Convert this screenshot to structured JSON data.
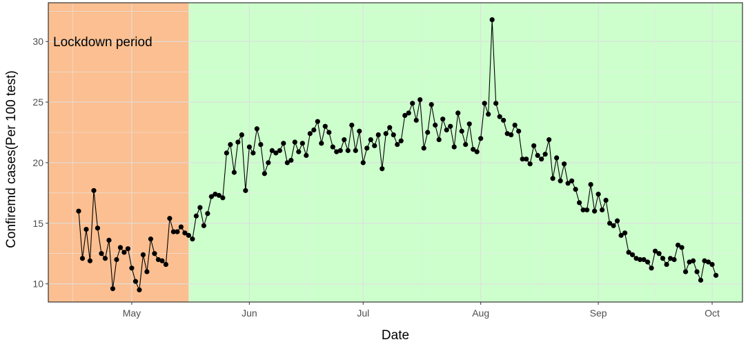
{
  "chart_data": {
    "type": "line",
    "title": "",
    "xlabel": "Date",
    "ylabel": "Confiremd cases(Per 100 test)",
    "x_ticks": [
      {
        "label": "May",
        "date": "2020-05-01"
      },
      {
        "label": "Jun",
        "date": "2020-06-01"
      },
      {
        "label": "Jul",
        "date": "2020-07-01"
      },
      {
        "label": "Aug",
        "date": "2020-08-01"
      },
      {
        "label": "Sep",
        "date": "2020-09-01"
      },
      {
        "label": "Oct",
        "date": "2020-10-01"
      }
    ],
    "xlim": [
      "2020-04-09",
      "2020-10-09"
    ],
    "y_ticks": [
      10,
      15,
      20,
      25,
      30
    ],
    "ylim": [
      8.5,
      33.2
    ],
    "grid": true,
    "annotations": [
      {
        "text": "Lockdown period"
      }
    ],
    "regions": [
      {
        "name": "lockdown",
        "start": "2020-04-09",
        "end": "2020-05-16",
        "color": "#fbbf91"
      },
      {
        "name": "post-lockdown",
        "start": "2020-05-16",
        "end": "2020-10-09",
        "color": "#ccffcc"
      }
    ],
    "series": [
      {
        "color": "#000000",
        "points": [
          [
            "2020-04-17",
            16.0
          ],
          [
            "2020-04-18",
            12.1
          ],
          [
            "2020-04-19",
            14.5
          ],
          [
            "2020-04-20",
            11.9
          ],
          [
            "2020-04-21",
            17.7
          ],
          [
            "2020-04-22",
            14.6
          ],
          [
            "2020-04-23",
            12.5
          ],
          [
            "2020-04-24",
            12.1
          ],
          [
            "2020-04-25",
            13.6
          ],
          [
            "2020-04-26",
            9.6
          ],
          [
            "2020-04-27",
            12.0
          ],
          [
            "2020-04-28",
            13.0
          ],
          [
            "2020-04-29",
            12.6
          ],
          [
            "2020-04-30",
            12.9
          ],
          [
            "2020-05-01",
            11.3
          ],
          [
            "2020-05-02",
            10.2
          ],
          [
            "2020-05-03",
            9.5
          ],
          [
            "2020-05-04",
            12.4
          ],
          [
            "2020-05-05",
            11.0
          ],
          [
            "2020-05-06",
            13.7
          ],
          [
            "2020-05-07",
            12.5
          ],
          [
            "2020-05-08",
            12.0
          ],
          [
            "2020-05-09",
            11.9
          ],
          [
            "2020-05-10",
            11.6
          ],
          [
            "2020-05-11",
            15.4
          ],
          [
            "2020-05-12",
            14.3
          ],
          [
            "2020-05-13",
            14.3
          ],
          [
            "2020-05-14",
            14.7
          ],
          [
            "2020-05-15",
            14.2
          ],
          [
            "2020-05-16",
            14.0
          ],
          [
            "2020-05-17",
            13.7
          ],
          [
            "2020-05-18",
            15.6
          ],
          [
            "2020-05-19",
            16.3
          ],
          [
            "2020-05-20",
            14.8
          ],
          [
            "2020-05-21",
            15.8
          ],
          [
            "2020-05-22",
            17.2
          ],
          [
            "2020-05-23",
            17.4
          ],
          [
            "2020-05-24",
            17.3
          ],
          [
            "2020-05-25",
            17.1
          ],
          [
            "2020-05-26",
            20.8
          ],
          [
            "2020-05-27",
            21.5
          ],
          [
            "2020-05-28",
            19.2
          ],
          [
            "2020-05-29",
            21.7
          ],
          [
            "2020-05-30",
            22.3
          ],
          [
            "2020-05-31",
            17.7
          ],
          [
            "2020-06-01",
            21.3
          ],
          [
            "2020-06-02",
            20.8
          ],
          [
            "2020-06-03",
            22.8
          ],
          [
            "2020-06-04",
            21.5
          ],
          [
            "2020-06-05",
            19.1
          ],
          [
            "2020-06-06",
            20.0
          ],
          [
            "2020-06-07",
            21.0
          ],
          [
            "2020-06-08",
            20.8
          ],
          [
            "2020-06-09",
            21.0
          ],
          [
            "2020-06-10",
            21.6
          ],
          [
            "2020-06-11",
            20.0
          ],
          [
            "2020-06-12",
            20.2
          ],
          [
            "2020-06-13",
            21.7
          ],
          [
            "2020-06-14",
            20.9
          ],
          [
            "2020-06-15",
            21.6
          ],
          [
            "2020-06-16",
            20.6
          ],
          [
            "2020-06-17",
            22.4
          ],
          [
            "2020-06-18",
            22.7
          ],
          [
            "2020-06-19",
            23.4
          ],
          [
            "2020-06-20",
            21.6
          ],
          [
            "2020-06-21",
            23.0
          ],
          [
            "2020-06-22",
            22.5
          ],
          [
            "2020-06-23",
            21.3
          ],
          [
            "2020-06-24",
            20.9
          ],
          [
            "2020-06-25",
            21.0
          ],
          [
            "2020-06-26",
            21.9
          ],
          [
            "2020-06-27",
            21.0
          ],
          [
            "2020-06-28",
            23.1
          ],
          [
            "2020-06-29",
            21.0
          ],
          [
            "2020-06-30",
            22.6
          ],
          [
            "2020-07-01",
            20.0
          ],
          [
            "2020-07-02",
            21.2
          ],
          [
            "2020-07-03",
            21.9
          ],
          [
            "2020-07-04",
            21.4
          ],
          [
            "2020-07-05",
            22.3
          ],
          [
            "2020-07-06",
            19.5
          ],
          [
            "2020-07-07",
            22.4
          ],
          [
            "2020-07-08",
            22.9
          ],
          [
            "2020-07-09",
            22.3
          ],
          [
            "2020-07-10",
            21.5
          ],
          [
            "2020-07-11",
            21.8
          ],
          [
            "2020-07-12",
            23.9
          ],
          [
            "2020-07-13",
            24.1
          ],
          [
            "2020-07-14",
            24.9
          ],
          [
            "2020-07-15",
            23.5
          ],
          [
            "2020-07-16",
            25.2
          ],
          [
            "2020-07-17",
            21.2
          ],
          [
            "2020-07-18",
            22.5
          ],
          [
            "2020-07-19",
            24.8
          ],
          [
            "2020-07-20",
            23.1
          ],
          [
            "2020-07-21",
            21.9
          ],
          [
            "2020-07-22",
            23.6
          ],
          [
            "2020-07-23",
            22.7
          ],
          [
            "2020-07-24",
            23.0
          ],
          [
            "2020-07-25",
            21.3
          ],
          [
            "2020-07-26",
            24.1
          ],
          [
            "2020-07-27",
            22.6
          ],
          [
            "2020-07-28",
            21.5
          ],
          [
            "2020-07-29",
            23.2
          ],
          [
            "2020-07-30",
            21.1
          ],
          [
            "2020-07-31",
            20.9
          ],
          [
            "2020-08-01",
            22.0
          ],
          [
            "2020-08-02",
            24.9
          ],
          [
            "2020-08-03",
            24.0
          ],
          [
            "2020-08-04",
            31.8
          ],
          [
            "2020-08-05",
            24.9
          ],
          [
            "2020-08-06",
            23.8
          ],
          [
            "2020-08-07",
            23.5
          ],
          [
            "2020-08-08",
            22.4
          ],
          [
            "2020-08-09",
            22.3
          ],
          [
            "2020-08-10",
            23.1
          ],
          [
            "2020-08-11",
            22.6
          ],
          [
            "2020-08-12",
            20.3
          ],
          [
            "2020-08-13",
            20.3
          ],
          [
            "2020-08-14",
            19.9
          ],
          [
            "2020-08-15",
            21.4
          ],
          [
            "2020-08-16",
            20.6
          ],
          [
            "2020-08-17",
            20.3
          ],
          [
            "2020-08-18",
            20.7
          ],
          [
            "2020-08-19",
            21.9
          ],
          [
            "2020-08-20",
            18.7
          ],
          [
            "2020-08-21",
            20.4
          ],
          [
            "2020-08-22",
            18.5
          ],
          [
            "2020-08-23",
            19.9
          ],
          [
            "2020-08-24",
            18.3
          ],
          [
            "2020-08-25",
            18.5
          ],
          [
            "2020-08-26",
            17.8
          ],
          [
            "2020-08-27",
            16.7
          ],
          [
            "2020-08-28",
            16.1
          ],
          [
            "2020-08-29",
            16.1
          ],
          [
            "2020-08-30",
            18.2
          ],
          [
            "2020-08-31",
            16.0
          ],
          [
            "2020-09-01",
            17.4
          ],
          [
            "2020-09-02",
            16.1
          ],
          [
            "2020-09-03",
            16.9
          ],
          [
            "2020-09-04",
            15.0
          ],
          [
            "2020-09-05",
            14.8
          ],
          [
            "2020-09-06",
            15.2
          ],
          [
            "2020-09-07",
            14.0
          ],
          [
            "2020-09-08",
            14.2
          ],
          [
            "2020-09-09",
            12.6
          ],
          [
            "2020-09-10",
            12.4
          ],
          [
            "2020-09-11",
            12.1
          ],
          [
            "2020-09-12",
            12.0
          ],
          [
            "2020-09-13",
            12.0
          ],
          [
            "2020-09-14",
            11.8
          ],
          [
            "2020-09-15",
            11.3
          ],
          [
            "2020-09-16",
            12.7
          ],
          [
            "2020-09-17",
            12.5
          ],
          [
            "2020-09-18",
            12.1
          ],
          [
            "2020-09-19",
            11.6
          ],
          [
            "2020-09-20",
            12.1
          ],
          [
            "2020-09-21",
            12.0
          ],
          [
            "2020-09-22",
            13.2
          ],
          [
            "2020-09-23",
            13.0
          ],
          [
            "2020-09-24",
            11.0
          ],
          [
            "2020-09-25",
            11.8
          ],
          [
            "2020-09-26",
            11.9
          ],
          [
            "2020-09-27",
            11.0
          ],
          [
            "2020-09-28",
            10.3
          ],
          [
            "2020-09-29",
            11.9
          ],
          [
            "2020-09-30",
            11.8
          ],
          [
            "2020-10-01",
            11.6
          ],
          [
            "2020-10-02",
            10.7
          ]
        ]
      }
    ]
  }
}
